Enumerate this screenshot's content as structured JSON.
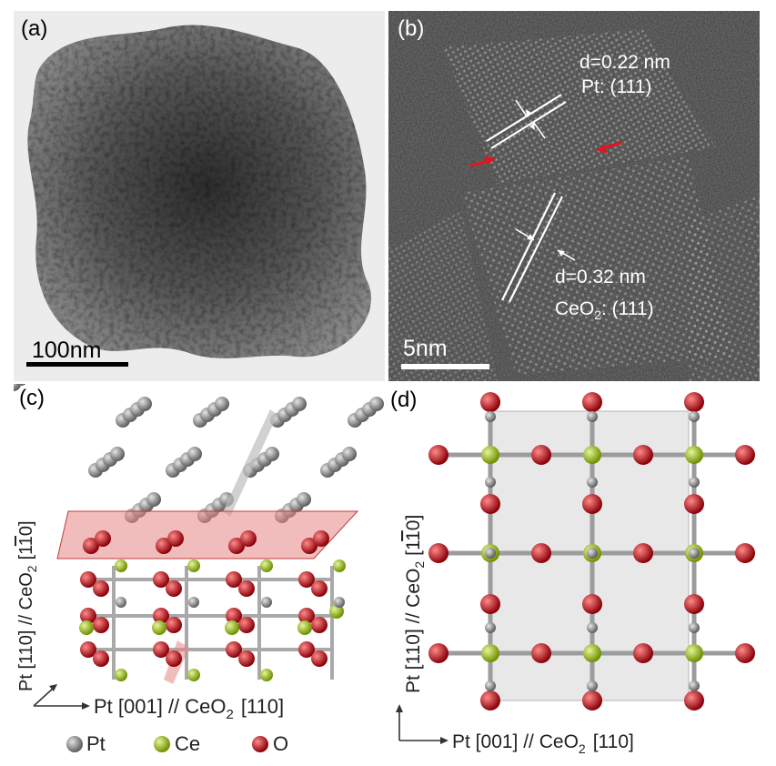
{
  "figure": {
    "panels": {
      "a": {
        "label": "(a)",
        "scale_bar": "100nm"
      },
      "b": {
        "label": "(b)",
        "scale_bar": "5nm",
        "pt_d": "d=0.22 nm",
        "pt_plane": "Pt: (111)",
        "ceo2_d": "d=0.32 nm",
        "ceo2_formula": "CeO",
        "ceo2_sub": "2",
        "ceo2_plane": ": (111)"
      },
      "c": {
        "label": "(c)",
        "axis_h_pre": "Pt [001] // CeO",
        "axis_h_sub": "2",
        "axis_h_post": "[110]",
        "axis_v": "Pt [110] // CeO",
        "axis_v_sub": "2",
        "axis_v_post": "[1",
        "axis_v_bar": "1",
        "axis_v_end": "0]",
        "legend": [
          {
            "label": "Pt",
            "color": "#8c8c8c"
          },
          {
            "label": "Ce",
            "color": "#9bc20f"
          },
          {
            "label": "O",
            "color": "#d4141c"
          }
        ]
      },
      "d": {
        "label": "(d)",
        "axis_h_pre": "Pt [001] // CeO",
        "axis_h_sub": "2",
        "axis_h_post": "[110]",
        "axis_v": "Pt [110] // CeO",
        "axis_v_sub": "2",
        "axis_v_post": "[1",
        "axis_v_bar": "1",
        "axis_v_end": "0]"
      }
    }
  }
}
